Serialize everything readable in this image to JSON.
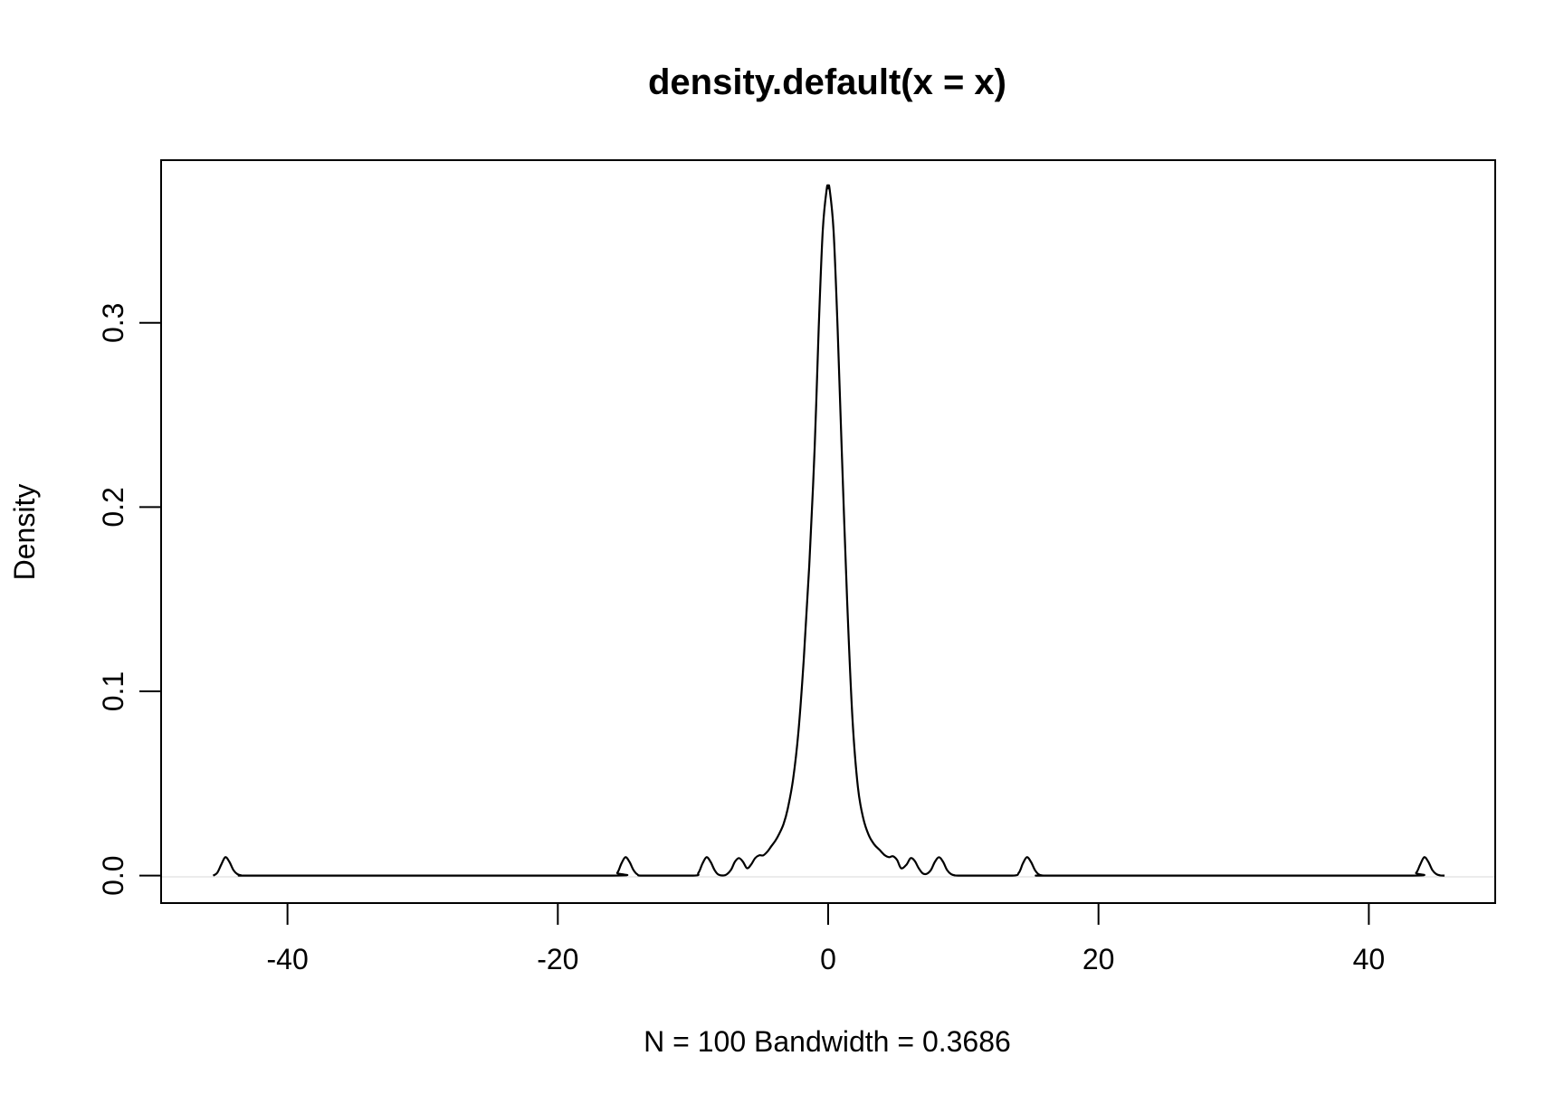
{
  "chart_data": {
    "type": "line",
    "title": "density.default(x = x)",
    "xlabel": "N = 100   Bandwidth = 0.3686",
    "ylabel": "Density",
    "xlim": [
      -49.35,
      49.35
    ],
    "ylim": [
      -0.0149,
      0.3883
    ],
    "x_ticks": [
      -40,
      -20,
      0,
      20,
      40
    ],
    "x_tick_labels": [
      "-40",
      "-20",
      "0",
      "20",
      "40"
    ],
    "y_ticks": [
      0.0,
      0.1,
      0.2,
      0.3
    ],
    "y_tick_labels": [
      "0.0",
      "0.1",
      "0.2",
      "0.3"
    ],
    "grid": false,
    "legend": "none",
    "series": [
      {
        "x": [
          -45.5,
          -45.2,
          -44.9,
          -44.6,
          -44.3,
          -44.0,
          -43.7,
          -43.4,
          -43.1,
          -42.5,
          -30.0,
          -16.0,
          -15.6,
          -15.3,
          -15.0,
          -14.7,
          -14.4,
          -14.1,
          -13.6,
          -10.0,
          -9.6,
          -9.3,
          -9.0,
          -8.7,
          -8.4,
          -8.1,
          -7.6,
          -7.2,
          -6.9,
          -6.6,
          -6.3,
          -6.0,
          -5.7,
          -5.4,
          -5.1,
          -4.8,
          -4.5,
          -4.2,
          -3.9,
          -3.6,
          -3.3,
          -3.0,
          -2.6,
          -2.2,
          -1.8,
          -1.4,
          -1.0,
          -0.7,
          -0.4,
          -0.1,
          0.0,
          0.1,
          0.4,
          0.7,
          1.0,
          1.4,
          1.8,
          2.2,
          2.6,
          3.0,
          3.4,
          3.8,
          4.2,
          4.5,
          4.8,
          5.1,
          5.4,
          5.8,
          6.1,
          6.4,
          6.7,
          7.0,
          7.3,
          7.6,
          7.9,
          8.2,
          8.5,
          8.8,
          9.1,
          9.4,
          9.7,
          10.0,
          10.5,
          13.6,
          14.1,
          14.4,
          14.7,
          15.0,
          15.3,
          15.6,
          16.0,
          16.5,
          30.0,
          43.0,
          43.5,
          43.8,
          44.1,
          44.4,
          44.7,
          45.0,
          45.3,
          45.6
        ],
        "values": [
          0.0,
          0.0015,
          0.006,
          0.01,
          0.0075,
          0.003,
          0.0008,
          0.0001,
          0.0,
          0.0,
          0.0,
          0.0,
          0.0015,
          0.0065,
          0.01,
          0.0075,
          0.003,
          0.0006,
          0.0,
          0.0,
          0.0015,
          0.0065,
          0.01,
          0.0075,
          0.003,
          0.0005,
          0.0003,
          0.003,
          0.0075,
          0.0095,
          0.0075,
          0.004,
          0.006,
          0.0095,
          0.011,
          0.011,
          0.013,
          0.016,
          0.019,
          0.023,
          0.028,
          0.036,
          0.052,
          0.078,
          0.118,
          0.168,
          0.232,
          0.297,
          0.35,
          0.373,
          0.373,
          0.373,
          0.35,
          0.297,
          0.232,
          0.15,
          0.085,
          0.048,
          0.031,
          0.022,
          0.017,
          0.014,
          0.011,
          0.01,
          0.0105,
          0.0085,
          0.004,
          0.006,
          0.0095,
          0.008,
          0.004,
          0.0012,
          0.001,
          0.003,
          0.0075,
          0.01,
          0.0075,
          0.003,
          0.0008,
          0.0001,
          0.0,
          0.0,
          0.0,
          0.0,
          0.0015,
          0.0065,
          0.01,
          0.0075,
          0.003,
          0.0006,
          0.0,
          0.0,
          0.0,
          0.0,
          0.0015,
          0.006,
          0.01,
          0.0075,
          0.003,
          0.0008,
          0.0001,
          0.0
        ]
      }
    ]
  }
}
